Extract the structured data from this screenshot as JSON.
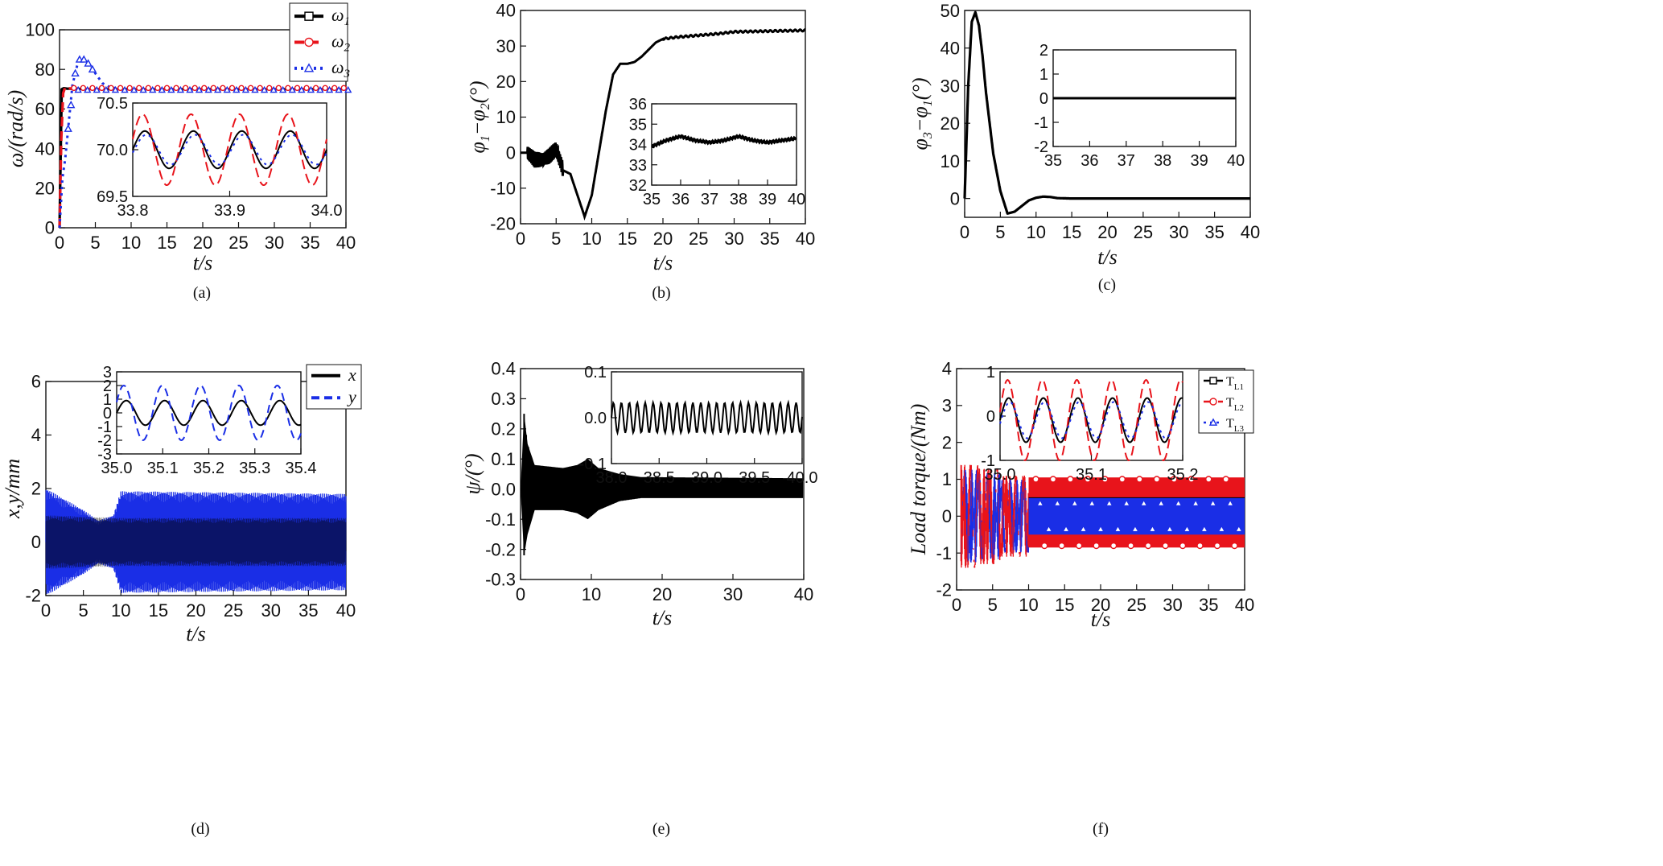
{
  "chart_data": [
    {
      "id": "a",
      "type": "line",
      "caption": "(a)",
      "xlabel": "t/s",
      "ylabel": "ω/(rad/s)",
      "xlim": [
        0,
        40
      ],
      "ylim": [
        0,
        100
      ],
      "xticks": [
        "0",
        "5",
        "10",
        "15",
        "20",
        "25",
        "30",
        "35",
        "40"
      ],
      "yticks": [
        "0",
        "20",
        "40",
        "60",
        "80",
        "100"
      ],
      "legend": [
        {
          "name": "ω1",
          "base": "ω",
          "sub": "1",
          "color": "#000000",
          "marker": "square",
          "dash": ""
        },
        {
          "name": "ω2",
          "base": "ω",
          "sub": "2",
          "color": "#e8141b",
          "marker": "circle",
          "dash": "12,6"
        },
        {
          "name": "ω3",
          "base": "ω",
          "sub": "3",
          "color": "#1a2ee6",
          "marker": "triangle",
          "dash": "3,5"
        }
      ],
      "legend_position": "top-right",
      "series": [
        {
          "name": "ω1",
          "x": [
            0,
            0.3,
            0.6,
            1,
            2,
            4,
            6,
            8,
            10,
            15,
            20,
            25,
            30,
            35,
            40
          ],
          "y": [
            0,
            70,
            70.5,
            70.3,
            70.2,
            70.1,
            70,
            70,
            70,
            70,
            70,
            70,
            70,
            70,
            70
          ]
        },
        {
          "name": "ω2",
          "x": [
            0,
            0.25,
            0.5,
            0.8,
            1,
            2,
            5,
            10,
            20,
            30,
            40
          ],
          "y": [
            0,
            45,
            68,
            71,
            70.5,
            70.3,
            70,
            70,
            70,
            70,
            70
          ]
        },
        {
          "name": "ω3",
          "x": [
            0,
            0.4,
            0.8,
            1.2,
            1.8,
            2.6,
            3.2,
            4,
            5,
            6,
            7,
            8,
            10,
            15,
            20,
            30,
            40
          ],
          "y": [
            0,
            25,
            35,
            50,
            72,
            84,
            86,
            84,
            78,
            73,
            71,
            70.5,
            70,
            70,
            70,
            70,
            70
          ]
        }
      ],
      "inset": {
        "xlim": [
          33.8,
          34.0
        ],
        "ylim": [
          69.5,
          70.5
        ],
        "xticks": [
          "33.8",
          "33.9",
          "34.0"
        ],
        "yticks": [
          "69.5",
          "70.0",
          "70.5"
        ],
        "series": [
          {
            "name": "ω1",
            "period": 0.05,
            "amplitude": 0.2,
            "center": 70.0,
            "phase": 0
          },
          {
            "name": "ω2",
            "period": 0.05,
            "amplitude": 0.38,
            "center": 70.0,
            "phase": 0.3
          },
          {
            "name": "ω3",
            "period": 0.05,
            "amplitude": 0.16,
            "center": 70.0,
            "phase": -0.2
          }
        ]
      }
    },
    {
      "id": "b",
      "type": "line",
      "caption": "(b)",
      "xlabel": "t/s",
      "ylabel": "φ1−φ2(°)",
      "xlim": [
        0,
        40
      ],
      "ylim": [
        -20,
        40
      ],
      "xticks": [
        "0",
        "5",
        "10",
        "15",
        "20",
        "25",
        "30",
        "35",
        "40"
      ],
      "yticks": [
        "-20",
        "-10",
        "0",
        "10",
        "20",
        "30",
        "40"
      ],
      "series": [
        {
          "name": "φ1−φ2",
          "x": [
            0,
            1,
            2,
            3,
            4,
            5,
            6,
            7,
            8,
            9,
            10,
            11,
            12,
            13,
            14,
            15,
            16,
            17,
            18,
            19,
            20,
            22,
            25,
            28,
            30,
            35,
            40
          ],
          "y": [
            0,
            0,
            -2,
            -2,
            -1,
            1,
            -5,
            -6,
            -12,
            -18,
            -12,
            0,
            12,
            22,
            25,
            25,
            25.5,
            27,
            29,
            31,
            32,
            32.5,
            33,
            33.5,
            34,
            34.2,
            34.4
          ]
        }
      ],
      "inset": {
        "xlim": [
          35,
          40
        ],
        "ylim": [
          32,
          36
        ],
        "xticks": [
          "35",
          "36",
          "37",
          "38",
          "39",
          "40"
        ],
        "yticks": [
          "32",
          "33",
          "34",
          "35",
          "36"
        ],
        "series": [
          {
            "name": "φ1−φ2",
            "x": [
              35,
              35.5,
              36,
              36.5,
              37,
              37.5,
              38,
              38.5,
              39,
              39.5,
              40
            ],
            "y": [
              33.9,
              34.2,
              34.4,
              34.2,
              34.1,
              34.2,
              34.4,
              34.2,
              34.1,
              34.2,
              34.3
            ]
          }
        ]
      }
    },
    {
      "id": "c",
      "type": "line",
      "caption": "(c)",
      "xlabel": "t/s",
      "ylabel": "φ3−φ1(°)",
      "xlim": [
        0,
        40
      ],
      "ylim": [
        -5,
        50
      ],
      "xticks": [
        "0",
        "5",
        "10",
        "15",
        "20",
        "25",
        "30",
        "35",
        "40"
      ],
      "yticks": [
        "0",
        "10",
        "20",
        "30",
        "40",
        "50"
      ],
      "series": [
        {
          "name": "φ3−φ1",
          "x": [
            0,
            0.5,
            1,
            1.5,
            2,
            2.5,
            3,
            4,
            5,
            6,
            7,
            8,
            9,
            10,
            11,
            12,
            13,
            15,
            20,
            30,
            40
          ],
          "y": [
            0,
            30,
            47,
            49.5,
            46,
            38,
            28,
            12,
            2,
            -4,
            -3.5,
            -2,
            -0.5,
            0.2,
            0.5,
            0.4,
            0.1,
            0,
            0,
            0,
            0
          ]
        }
      ],
      "inset": {
        "xlim": [
          35,
          40
        ],
        "ylim": [
          -2,
          2
        ],
        "xticks": [
          "35",
          "36",
          "37",
          "38",
          "39",
          "40"
        ],
        "yticks": [
          "-2",
          "-1",
          "0",
          "1",
          "2"
        ],
        "series": [
          {
            "name": "φ3−φ1",
            "x": [
              35,
              40
            ],
            "y": [
              0,
              0
            ]
          }
        ]
      }
    },
    {
      "id": "d",
      "type": "line",
      "caption": "(d)",
      "xlabel": "t/s",
      "ylabel": "x,y/mm",
      "xlim": [
        0,
        40
      ],
      "ylim": [
        -2,
        6
      ],
      "xticks": [
        "0",
        "5",
        "10",
        "15",
        "20",
        "25",
        "30",
        "35",
        "40"
      ],
      "yticks": [
        "-2",
        "0",
        "2",
        "4",
        "6"
      ],
      "legend": [
        {
          "name": "x",
          "color": "#000000",
          "dash": ""
        },
        {
          "name": "y",
          "color": "#1a2ee6",
          "dash": "10,6"
        }
      ],
      "legend_position": "top-right",
      "envelope_y_amplitude": [
        [
          0,
          2.0
        ],
        [
          5,
          1.2
        ],
        [
          7,
          0.8
        ],
        [
          9,
          1.0
        ],
        [
          10,
          1.9
        ],
        [
          40,
          1.8
        ]
      ],
      "envelope_x_amplitude": [
        [
          0,
          1.0
        ],
        [
          10,
          0.9
        ],
        [
          40,
          0.9
        ]
      ],
      "inset": {
        "xlim": [
          35.0,
          35.4
        ],
        "ylim": [
          -3,
          3
        ],
        "xticks": [
          "35.0",
          "35.1",
          "35.2",
          "35.3",
          "35.4"
        ],
        "yticks": [
          "-3",
          "-2",
          "-1",
          "0",
          "1",
          "2",
          "3"
        ],
        "series": [
          {
            "name": "x",
            "period": 0.0833,
            "amplitude": 0.9,
            "center": 0,
            "phase": 0
          },
          {
            "name": "y",
            "period": 0.0833,
            "amplitude": 2.0,
            "center": 0,
            "phase": 0.4
          }
        ]
      }
    },
    {
      "id": "e",
      "type": "line",
      "caption": "(e)",
      "xlabel": "t/s",
      "ylabel": "ψ/(°)",
      "xlim": [
        0,
        40
      ],
      "ylim": [
        -0.3,
        0.4
      ],
      "xticks": [
        "0",
        "10",
        "20",
        "30",
        "40"
      ],
      "yticks": [
        "-0.3",
        "-0.2",
        "-0.1",
        "0.0",
        "0.1",
        "0.2",
        "0.3",
        "0.4"
      ],
      "envelope_top": [
        [
          0,
          0
        ],
        [
          0.5,
          0.25
        ],
        [
          1,
          0.15
        ],
        [
          2,
          0.08
        ],
        [
          6,
          0.07
        ],
        [
          8,
          0.08
        ],
        [
          9.5,
          0.1
        ],
        [
          11,
          0.07
        ],
        [
          14,
          0.05
        ],
        [
          17,
          0.04
        ],
        [
          40,
          0.036
        ]
      ],
      "envelope_bottom": [
        [
          0,
          0
        ],
        [
          0.5,
          -0.22
        ],
        [
          1,
          -0.15
        ],
        [
          2,
          -0.07
        ],
        [
          6,
          -0.07
        ],
        [
          8,
          -0.08
        ],
        [
          9.5,
          -0.1
        ],
        [
          11,
          -0.07
        ],
        [
          14,
          -0.04
        ],
        [
          17,
          -0.03
        ],
        [
          40,
          -0.03
        ]
      ],
      "inset": {
        "xlim": [
          38.0,
          40.0
        ],
        "ylim": [
          -0.1,
          0.1
        ],
        "xticks": [
          "38.0",
          "38.5",
          "39.0",
          "39.5",
          "40.0"
        ],
        "yticks": [
          "-0.1",
          "0.0",
          "0.1"
        ],
        "series": [
          {
            "name": "ψ",
            "period": 0.0833,
            "amplitude": 0.033,
            "center": 0,
            "phase": 0
          }
        ]
      }
    },
    {
      "id": "f",
      "type": "line",
      "caption": "(f)",
      "xlabel": "t/s",
      "ylabel": "Load torque/(Nm)",
      "xlim": [
        0,
        40
      ],
      "ylim": [
        -2,
        4
      ],
      "xticks": [
        "0",
        "5",
        "10",
        "15",
        "20",
        "25",
        "30",
        "35",
        "40"
      ],
      "yticks": [
        "-2",
        "-1",
        "0",
        "1",
        "2",
        "3",
        "4"
      ],
      "legend": [
        {
          "name": "TL1",
          "base": "T",
          "sub": "L1",
          "color": "#000000",
          "marker": "square",
          "dash": ""
        },
        {
          "name": "TL2",
          "base": "T",
          "sub": "L2",
          "color": "#e8141b",
          "marker": "circle",
          "dash": "12,6"
        },
        {
          "name": "TL3",
          "base": "T",
          "sub": "L3",
          "color": "#1a2ee6",
          "marker": "triangle",
          "dash": "3,5"
        }
      ],
      "legend_position": "top-right",
      "bands": [
        {
          "name": "TL2",
          "top": 1.05,
          "bottom": -0.85
        },
        {
          "name": "TL3",
          "top": 0.5,
          "bottom": -0.5
        },
        {
          "name": "TL1",
          "top": 0.5,
          "bottom": -0.45
        }
      ],
      "inset": {
        "xlim": [
          35.0,
          35.22
        ],
        "ylim": [
          -1,
          1.2
        ],
        "xticks": [
          "35.0",
          "35.1",
          "35.2"
        ],
        "yticks": [
          "-1",
          "0",
          "1"
        ],
        "series": [
          {
            "name": "TL1",
            "period": 0.0417,
            "amplitude": 0.55,
            "center": 0,
            "phase": 0
          },
          {
            "name": "TL2",
            "period": 0.0417,
            "amplitude": 1.0,
            "center": 0,
            "phase": 0.2
          },
          {
            "name": "TL3",
            "period": 0.0417,
            "amplitude": 0.45,
            "center": 0,
            "phase": -0.2
          }
        ]
      }
    }
  ]
}
